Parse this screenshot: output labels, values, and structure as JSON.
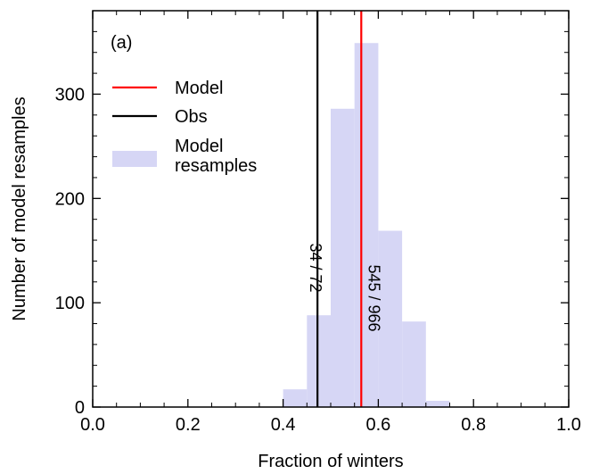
{
  "chart_data": {
    "type": "bar",
    "panel_label": "(a)",
    "xlabel": "Fraction of winters",
    "ylabel": "Number of model resamples",
    "xlim": [
      0.0,
      1.0
    ],
    "ylim": [
      0,
      380
    ],
    "xticks": [
      0.0,
      0.2,
      0.4,
      0.6,
      0.8,
      1.0
    ],
    "xtick_labels": [
      "0.0",
      "0.2",
      "0.4",
      "0.6",
      "0.8",
      "1.0"
    ],
    "yticks": [
      0,
      100,
      200,
      300
    ],
    "ytick_labels": [
      "0",
      "100",
      "200",
      "300"
    ],
    "grid": false,
    "legend_position": "top-left",
    "histogram": {
      "name": "Model resamples",
      "color": "#d6d6f5",
      "bins": [
        {
          "x0": 0.4,
          "x1": 0.45,
          "count": 17
        },
        {
          "x0": 0.45,
          "x1": 0.5,
          "count": 88
        },
        {
          "x0": 0.5,
          "x1": 0.55,
          "count": 286
        },
        {
          "x0": 0.55,
          "x1": 0.6,
          "count": 349
        },
        {
          "x0": 0.6,
          "x1": 0.65,
          "count": 169
        },
        {
          "x0": 0.65,
          "x1": 0.7,
          "count": 82
        },
        {
          "x0": 0.7,
          "x1": 0.75,
          "count": 6
        }
      ]
    },
    "lines": [
      {
        "name": "Model",
        "x": 0.5642,
        "color": "#ff0000",
        "label": "545 / 966"
      },
      {
        "name": "Obs",
        "x": 0.4722,
        "color": "#000000",
        "label": "34 / 72"
      }
    ],
    "legend": [
      {
        "name": "Model",
        "kind": "line",
        "color": "#ff0000"
      },
      {
        "name": "Obs",
        "kind": "line",
        "color": "#000000"
      },
      {
        "name": "Model resamples",
        "kind": "patch",
        "color": "#d6d6f5",
        "lines": [
          "Model",
          "resamples"
        ]
      }
    ]
  }
}
